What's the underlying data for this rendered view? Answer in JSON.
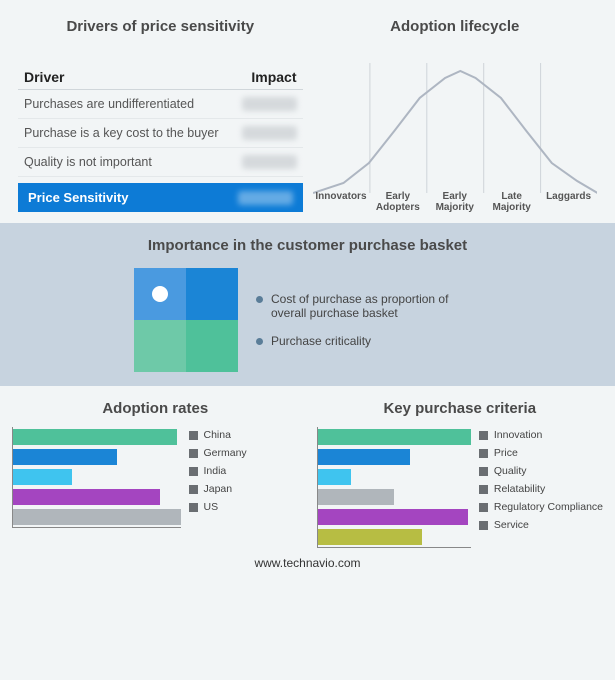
{
  "palette": {
    "green": "#4fc19a",
    "blue": "#1b85d6",
    "cyan": "#3fc4ef",
    "purple": "#a445c0",
    "grey": "#b0b6bb",
    "olive": "#b7bd43"
  },
  "drivers": {
    "title": "Drivers of price sensitivity",
    "col_driver": "Driver",
    "col_impact": "Impact",
    "rows": [
      {
        "label": "Purchases are undifferentiated"
      },
      {
        "label": "Purchase is a key cost to the buyer"
      },
      {
        "label": "Quality is not important"
      }
    ],
    "foot_label": "Price Sensitivity",
    "foot_bg": "#0d7bd6"
  },
  "lifecycle": {
    "title": "Adoption lifecycle",
    "labels": [
      "Innovators",
      "Early Adopters",
      "Early Majority",
      "Late Majority",
      "Laggards"
    ],
    "curve_color": "#aeb6c2",
    "divider_color": "#cfd4d9",
    "curve_pts": [
      [
        0,
        140
      ],
      [
        30,
        130
      ],
      [
        55,
        110
      ],
      [
        80,
        78
      ],
      [
        105,
        45
      ],
      [
        130,
        25
      ],
      [
        145,
        18
      ],
      [
        160,
        25
      ],
      [
        185,
        45
      ],
      [
        210,
        78
      ],
      [
        235,
        110
      ],
      [
        260,
        128
      ],
      [
        280,
        140
      ]
    ],
    "label_fontsize": 10
  },
  "importance": {
    "title": "Importance in the customer purchase basket",
    "quad_colors": [
      "#4a9ae0",
      "#1b85d6",
      "#6ec9a8",
      "#4fc19a"
    ],
    "legend": [
      {
        "color": "#5a7d98",
        "text": "Cost of purchase as proportion of overall purchase basket"
      },
      {
        "color": "#5a7d98",
        "text": "Purchase criticality"
      }
    ],
    "band_bg": "#c7d3df"
  },
  "adoption": {
    "title": "Adoption rates",
    "bar_unit_width_pct": 100,
    "bars": [
      {
        "label": "China",
        "color": "#4fc19a",
        "value": 98
      },
      {
        "label": "Germany",
        "color": "#1b85d6",
        "value": 62
      },
      {
        "label": "India",
        "color": "#3fc4ef",
        "value": 35
      },
      {
        "label": "Japan",
        "color": "#a445c0",
        "value": 88
      },
      {
        "label": "US",
        "color": "#b0b6bb",
        "value": 100
      }
    ],
    "swatch_color": "#6a6e72"
  },
  "criteria": {
    "title": "Key purchase criteria",
    "bars": [
      {
        "label": "Innovation",
        "color": "#4fc19a",
        "value": 100
      },
      {
        "label": "Price",
        "color": "#1b85d6",
        "value": 60
      },
      {
        "label": "Quality",
        "color": "#3fc4ef",
        "value": 22
      },
      {
        "label": "Relatability",
        "color": "#b0b6bb",
        "value": 50
      },
      {
        "label": "Regulatory Compliance",
        "color": "#a445c0",
        "value": 98
      },
      {
        "label": "Service",
        "color": "#b7bd43",
        "value": 68
      }
    ],
    "swatch_color": "#6a6e72"
  },
  "footer": "www.technavio.com"
}
